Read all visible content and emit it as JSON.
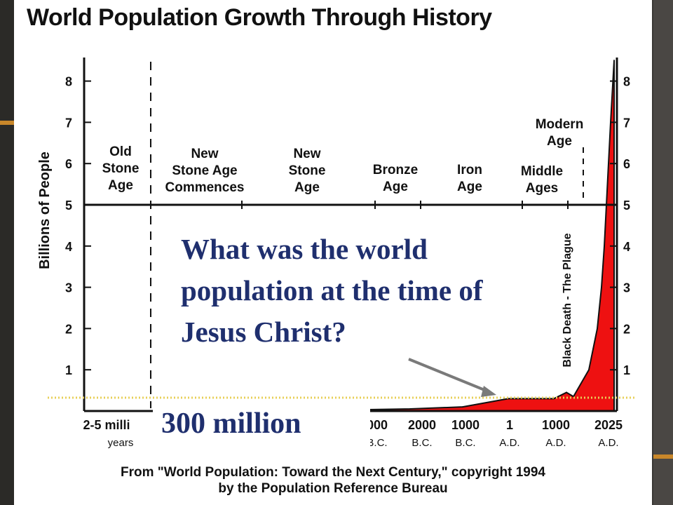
{
  "slide": {
    "title": "World Population Growth Through History",
    "question": "What was the world population at the time of Jesus Christ?",
    "answer": "300 million",
    "source_line1": "From \"World Population: Toward the Next Century,\" copyright 1994",
    "source_line2": "by the Population Reference Bureau"
  },
  "chart_data": {
    "type": "area",
    "title": "World Population Growth Through History",
    "ylabel": "Billions of People",
    "ylim": [
      0,
      8.6
    ],
    "yticks": [
      1,
      2,
      3,
      4,
      5,
      6,
      7,
      8
    ],
    "xtick_labels": [
      {
        "top": "2-5 milli",
        "bottom": "years"
      },
      {
        "top": "000",
        "bottom": "B.C."
      },
      {
        "top": "2000",
        "bottom": "B.C."
      },
      {
        "top": "1000",
        "bottom": "B.C."
      },
      {
        "top": "1",
        "bottom": "A.D."
      },
      {
        "top": "1000",
        "bottom": "A.D."
      },
      {
        "top": "2025",
        "bottom": "A.D."
      }
    ],
    "eras": [
      "Old Stone Age",
      "New Stone Age Commences",
      "New Stone Age",
      "Bronze Age",
      "Iron Age",
      "Middle Ages",
      "Modern Age"
    ],
    "annotations": [
      "Black Death - The Plague"
    ],
    "fill_color": "#ee1111",
    "series": [
      {
        "values": [
          {
            "x": "2-5 million years",
            "y": 0.005
          },
          {
            "x": "8000 B.C.",
            "y": 0.005
          },
          {
            "x": "4000 B.C.",
            "y": 0.03
          },
          {
            "x": "2000 B.C.",
            "y": 0.05
          },
          {
            "x": "1000 B.C.",
            "y": 0.1
          },
          {
            "x": "1 A.D.",
            "y": 0.3
          },
          {
            "x": "1000 A.D.",
            "y": 0.3
          },
          {
            "x": "1340 A.D.",
            "y": 0.45
          },
          {
            "x": "1400 A.D.",
            "y": 0.35
          },
          {
            "x": "1800 A.D.",
            "y": 1.0
          },
          {
            "x": "1930 A.D.",
            "y": 2.0
          },
          {
            "x": "1960 A.D.",
            "y": 3.0
          },
          {
            "x": "1975 A.D.",
            "y": 4.0
          },
          {
            "x": "1987 A.D.",
            "y": 5.0
          },
          {
            "x": "1999 A.D.",
            "y": 6.0
          },
          {
            "x": "2012 A.D.",
            "y": 7.0
          },
          {
            "x": "2025 A.D.",
            "y": 8.5
          }
        ]
      }
    ]
  }
}
